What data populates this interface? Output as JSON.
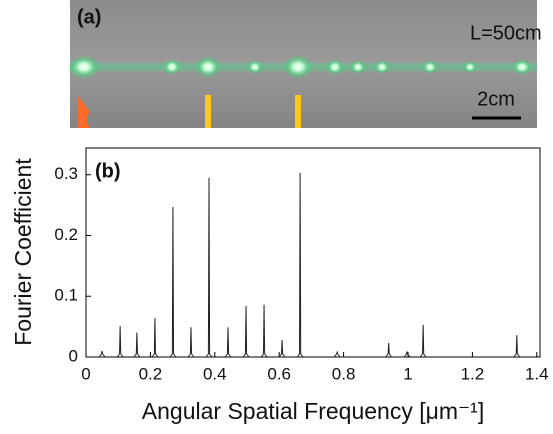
{
  "panel_a": {
    "label": "(a)",
    "length": "L=50cm",
    "scale": "2cm"
  },
  "chart_data": {
    "type": "spikes",
    "panel_label": "(b)",
    "x_label": "Angular Spatial Frequency [μm⁻¹]",
    "y_label": "Fourier Coefficient",
    "x": [
      0.05,
      0.106,
      0.158,
      0.214,
      0.27,
      0.326,
      0.382,
      0.441,
      0.497,
      0.553,
      0.609,
      0.665,
      0.78,
      0.94,
      0.997,
      1.047,
      1.338
    ],
    "values": [
      0.01,
      0.051,
      0.04,
      0.064,
      0.247,
      0.049,
      0.295,
      0.049,
      0.084,
      0.086,
      0.028,
      0.303,
      0.008,
      0.023,
      0.008,
      0.053,
      0.036
    ],
    "color": "#222222",
    "xlim": [
      0,
      1.41
    ],
    "ylim": [
      0,
      0.344
    ],
    "xticks": [
      0,
      0.2,
      0.4,
      0.6,
      0.8,
      1,
      1.2,
      1.4
    ],
    "yticks": [
      0,
      0.1,
      0.2,
      0.3
    ],
    "grid": false
  }
}
